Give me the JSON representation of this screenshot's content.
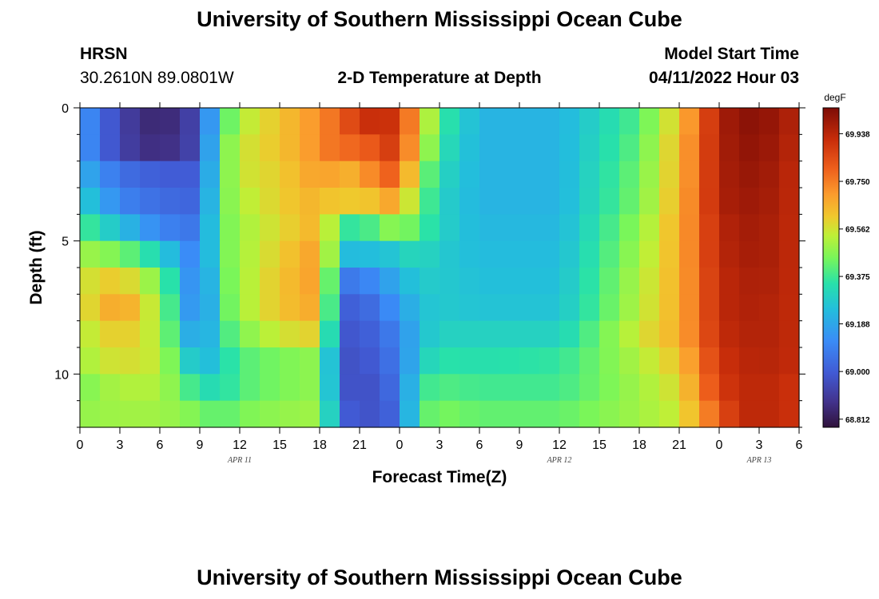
{
  "header": {
    "title": "University of Southern Mississippi Ocean Cube",
    "station": "HRSN",
    "coords": "30.2610N  89.0801W",
    "subtitle": "2-D Temperature at Depth",
    "model_label": "Model Start Time",
    "model_time": "04/11/2022 Hour 03"
  },
  "footer": {
    "title": "University of Southern Mississippi Ocean Cube"
  },
  "chart_data": {
    "type": "heatmap",
    "xlabel": "Forecast Time(Z)",
    "ylabel": "Depth (ft)",
    "xlim": [
      0,
      54
    ],
    "ylim": [
      0,
      12
    ],
    "x_ticks": [
      "0",
      "3",
      "6",
      "9",
      "12",
      "15",
      "18",
      "21",
      "0",
      "3",
      "6",
      "9",
      "12",
      "15",
      "18",
      "21",
      "0",
      "3",
      "6"
    ],
    "y_ticks": [
      "0",
      "5",
      "10"
    ],
    "date_labels": [
      {
        "label": "APR 11",
        "at_hour": 12
      },
      {
        "label": "APR 12",
        "at_hour": 36
      },
      {
        "label": "APR 13",
        "at_hour": 51
      }
    ],
    "colorbar": {
      "unit": "degF",
      "labels": [
        "69.938",
        "69.750",
        "69.562",
        "69.375",
        "69.188",
        "69.000",
        "68.812"
      ],
      "min": 68.78,
      "max": 70.04
    },
    "rows_depth_ft": [
      0.5,
      1.5,
      2.5,
      3.5,
      4.5,
      5.5,
      6.5,
      7.5,
      8.5,
      9.5,
      10.5,
      11.5
    ],
    "x_hours": [
      0,
      3,
      6,
      9,
      10.5,
      12,
      15,
      18,
      19.5,
      20.5,
      22,
      23,
      24,
      25.5,
      27,
      30,
      36,
      42,
      45,
      48,
      49.5,
      51,
      54
    ],
    "values": [
      [
        69.16,
        68.93,
        68.83,
        68.95,
        69.35,
        69.52,
        69.62,
        69.72,
        69.8,
        69.86,
        69.92,
        69.92,
        69.86,
        69.65,
        69.38,
        69.22,
        69.22,
        69.4,
        69.62,
        69.96,
        70.01,
        70.02,
        69.94
      ],
      [
        69.16,
        68.93,
        68.85,
        68.95,
        69.4,
        69.55,
        69.62,
        69.72,
        69.8,
        69.78,
        69.82,
        69.88,
        69.85,
        69.6,
        69.35,
        69.22,
        69.22,
        69.42,
        69.64,
        69.96,
        70.0,
        70.01,
        69.93
      ],
      [
        69.22,
        69.05,
        69.0,
        69.0,
        69.4,
        69.55,
        69.6,
        69.7,
        69.66,
        69.66,
        69.74,
        69.8,
        69.78,
        69.5,
        69.32,
        69.22,
        69.22,
        69.44,
        69.64,
        69.96,
        69.99,
        70.0,
        69.92
      ],
      [
        69.3,
        69.1,
        69.04,
        69.02,
        69.42,
        69.52,
        69.6,
        69.66,
        69.58,
        69.62,
        69.62,
        69.68,
        69.66,
        69.45,
        69.3,
        69.22,
        69.22,
        69.45,
        69.65,
        69.96,
        69.98,
        69.99,
        69.92
      ],
      [
        69.4,
        69.25,
        69.1,
        69.06,
        69.42,
        69.5,
        69.58,
        69.66,
        69.4,
        69.35,
        69.4,
        69.46,
        69.48,
        69.4,
        69.3,
        69.23,
        69.23,
        69.48,
        69.66,
        69.94,
        69.97,
        69.98,
        69.92
      ],
      [
        69.5,
        69.45,
        69.3,
        69.06,
        69.42,
        69.5,
        69.6,
        69.7,
        69.3,
        69.22,
        69.25,
        69.25,
        69.3,
        69.32,
        69.28,
        69.24,
        69.24,
        69.5,
        69.66,
        69.94,
        69.96,
        69.98,
        69.92
      ],
      [
        69.55,
        69.62,
        69.45,
        69.04,
        69.4,
        69.5,
        69.62,
        69.7,
        69.15,
        69.05,
        69.12,
        69.16,
        69.22,
        69.28,
        69.28,
        69.25,
        69.25,
        69.52,
        69.66,
        69.93,
        69.95,
        69.97,
        69.92
      ],
      [
        69.55,
        69.7,
        69.5,
        69.04,
        69.38,
        69.5,
        69.62,
        69.68,
        69.1,
        68.98,
        69.05,
        69.1,
        69.16,
        69.25,
        69.28,
        69.26,
        69.26,
        69.53,
        69.66,
        69.93,
        69.95,
        69.96,
        69.92
      ],
      [
        69.52,
        69.62,
        69.52,
        69.1,
        69.35,
        69.45,
        69.56,
        69.6,
        69.06,
        68.96,
        69.02,
        69.06,
        69.1,
        69.25,
        69.3,
        69.3,
        69.3,
        69.56,
        69.66,
        69.92,
        69.94,
        69.96,
        69.92
      ],
      [
        69.5,
        69.58,
        69.54,
        69.2,
        69.3,
        69.4,
        69.45,
        69.48,
        69.04,
        68.95,
        69.0,
        69.04,
        69.08,
        69.28,
        69.35,
        69.34,
        69.36,
        69.52,
        69.62,
        69.9,
        69.93,
        69.95,
        69.92
      ],
      [
        69.45,
        69.52,
        69.52,
        69.34,
        69.32,
        69.4,
        69.45,
        69.48,
        69.05,
        68.95,
        68.98,
        69.02,
        69.06,
        69.36,
        69.4,
        69.38,
        69.38,
        69.5,
        69.58,
        69.88,
        69.92,
        69.94,
        69.9
      ],
      [
        69.48,
        69.5,
        69.5,
        69.45,
        69.4,
        69.45,
        69.48,
        69.5,
        69.1,
        68.96,
        68.98,
        69.0,
        69.05,
        69.4,
        69.45,
        69.42,
        69.42,
        69.5,
        69.55,
        69.82,
        69.92,
        69.94,
        69.9
      ]
    ]
  }
}
